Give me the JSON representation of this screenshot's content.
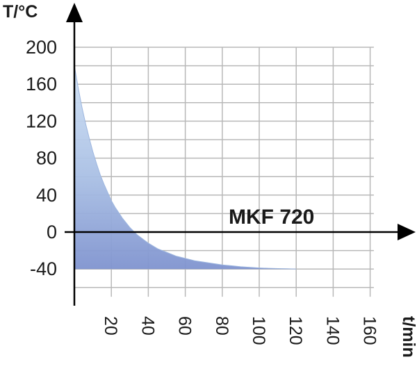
{
  "chart_data": {
    "type": "area",
    "annotation": "MKF 720",
    "ylabel": "T/°C",
    "xlabel": "t/min",
    "xlim": [
      0,
      162
    ],
    "ylim": [
      -70,
      200
    ],
    "x_ticks": [
      20,
      40,
      60,
      80,
      100,
      120,
      140,
      160
    ],
    "y_ticks": [
      200,
      160,
      120,
      80,
      40,
      0,
      -40
    ],
    "grid": true,
    "grid_x": [
      20,
      40,
      60,
      80,
      100,
      120,
      140,
      160
    ],
    "grid_y": [
      200,
      180,
      160,
      140,
      120,
      100,
      80,
      60,
      40,
      20,
      0,
      -20,
      -40,
      -60
    ],
    "fill_color": "#a9bfe4",
    "series": [
      {
        "x": [
          0,
          2,
          4,
          6,
          8,
          10,
          12,
          14,
          16,
          18,
          20,
          22,
          24,
          26,
          28,
          30,
          32,
          34,
          36,
          38,
          40,
          45,
          50,
          55,
          60,
          65,
          70,
          75,
          80,
          85,
          90,
          95,
          100,
          105,
          110,
          115,
          120
        ],
        "y": [
          180,
          157,
          136,
          118,
          102,
          87,
          74,
          62,
          52,
          43,
          34,
          27,
          21,
          15,
          10,
          5,
          1,
          -3,
          -6,
          -9,
          -12,
          -18,
          -22,
          -26,
          -28.5,
          -31,
          -32.5,
          -34,
          -35.5,
          -36.5,
          -37.5,
          -38.2,
          -38.8,
          -39.2,
          -39.5,
          -39.7,
          -40
        ]
      }
    ]
  }
}
